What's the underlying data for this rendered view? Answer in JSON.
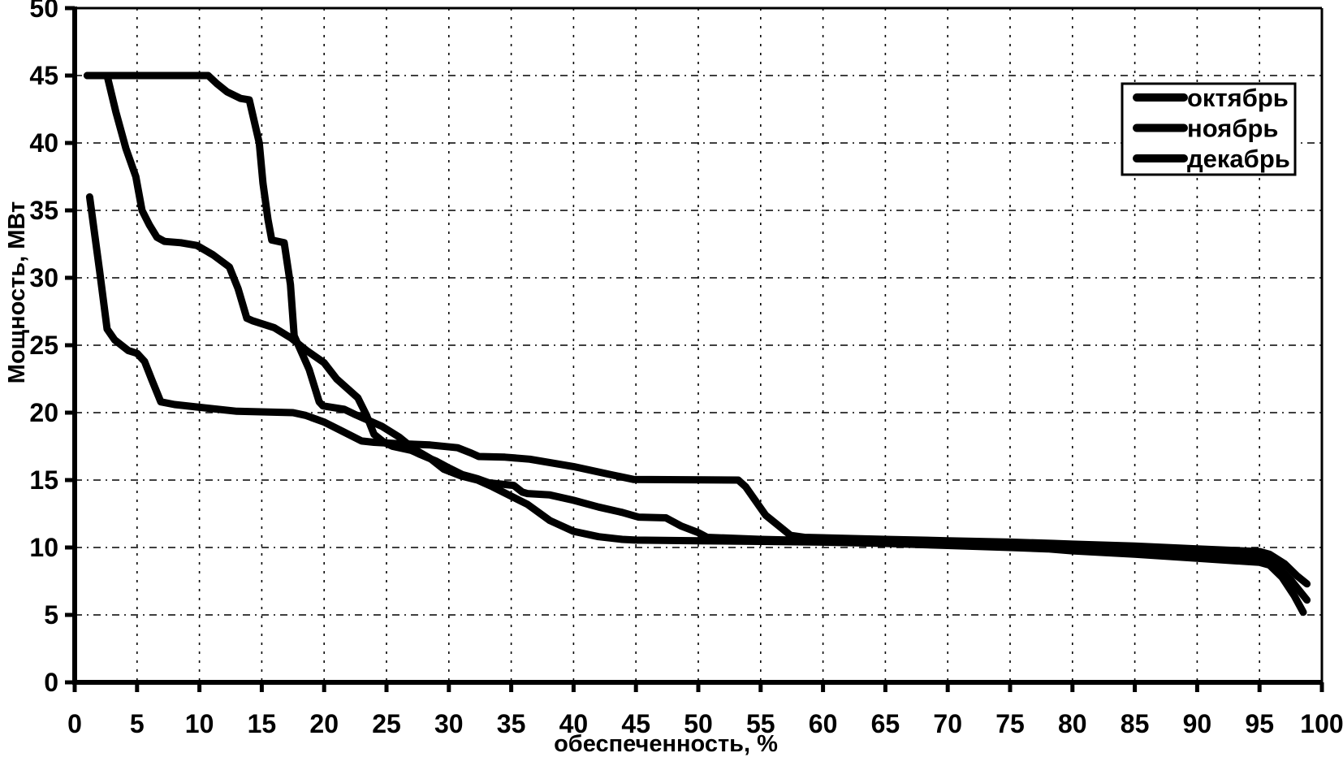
{
  "chart_data": {
    "type": "line",
    "title": "",
    "xlabel": "обеспеченность, %",
    "ylabel": "Мощность, МВт",
    "xlim": [
      0,
      100
    ],
    "ylim": [
      0,
      50
    ],
    "xtick_step": 5,
    "ytick_step": 5,
    "grid": true,
    "line_color": "#000000",
    "background_color": "#ffffff",
    "legend": {
      "position": "top-right",
      "entries": [
        "октябрь",
        "ноябрь",
        "декабрь"
      ]
    },
    "series": [
      {
        "name": "октябрь",
        "points": [
          [
            1.2,
            36
          ],
          [
            2,
            30.5
          ],
          [
            2.6,
            26.2
          ],
          [
            3.2,
            25.4
          ],
          [
            4.3,
            24.6
          ],
          [
            5,
            24.4
          ],
          [
            5.6,
            23.8
          ],
          [
            6.2,
            22.4
          ],
          [
            6.9,
            20.8
          ],
          [
            8,
            20.6
          ],
          [
            10,
            20.4
          ],
          [
            13,
            20.1
          ],
          [
            17.5,
            20.0
          ],
          [
            18.5,
            19.8
          ],
          [
            20,
            19.3
          ],
          [
            21.5,
            18.6
          ],
          [
            23,
            17.9
          ],
          [
            24,
            17.8
          ],
          [
            26,
            17.7
          ],
          [
            28.5,
            17.6
          ],
          [
            30.7,
            17.4
          ],
          [
            31.8,
            17.0
          ],
          [
            32.4,
            16.75
          ],
          [
            34.5,
            16.7
          ],
          [
            36.5,
            16.55
          ],
          [
            40,
            16.0
          ],
          [
            43,
            15.4
          ],
          [
            44.8,
            15.05
          ],
          [
            53.2,
            15.0
          ],
          [
            53.8,
            14.5
          ],
          [
            55.4,
            12.4
          ],
          [
            57.4,
            10.9
          ],
          [
            58.5,
            10.75
          ],
          [
            65,
            10.6
          ],
          [
            70,
            10.5
          ],
          [
            75,
            10.4
          ],
          [
            78.5,
            10.3
          ],
          [
            80,
            10.25
          ],
          [
            85,
            10.1
          ],
          [
            90,
            9.9
          ],
          [
            95,
            9.7
          ],
          [
            95.8,
            9.5
          ],
          [
            97,
            8.8
          ],
          [
            98,
            7.9
          ],
          [
            98.8,
            7.3
          ]
        ]
      },
      {
        "name": "ноябрь",
        "points": [
          [
            1,
            45
          ],
          [
            2.6,
            45
          ],
          [
            3.3,
            42.3
          ],
          [
            4.1,
            39.6
          ],
          [
            4.9,
            37.5
          ],
          [
            5.4,
            35.0
          ],
          [
            6,
            33.9
          ],
          [
            6.6,
            33.0
          ],
          [
            7.2,
            32.7
          ],
          [
            8.5,
            32.6
          ],
          [
            9.8,
            32.4
          ],
          [
            11.1,
            31.7
          ],
          [
            12.4,
            30.8
          ],
          [
            13.1,
            29.2
          ],
          [
            13.8,
            27.0
          ],
          [
            14.3,
            26.8
          ],
          [
            16,
            26.3
          ],
          [
            17.4,
            25.5
          ],
          [
            18.6,
            24.6
          ],
          [
            20,
            23.7
          ],
          [
            21,
            22.5
          ],
          [
            22.7,
            21.1
          ],
          [
            23.4,
            19.8
          ],
          [
            24,
            18.4
          ],
          [
            24.8,
            17.8
          ],
          [
            25.5,
            17.5
          ],
          [
            27,
            17.2
          ],
          [
            27.7,
            16.9
          ],
          [
            29,
            16.4
          ],
          [
            30,
            15.9
          ],
          [
            31.1,
            15.4
          ],
          [
            32.3,
            15.1
          ],
          [
            33.2,
            14.8
          ],
          [
            35.2,
            14.6
          ],
          [
            35.9,
            14.1
          ],
          [
            36.3,
            14.0
          ],
          [
            38.1,
            13.9
          ],
          [
            40,
            13.5
          ],
          [
            42,
            13.0
          ],
          [
            43.9,
            12.6
          ],
          [
            45.2,
            12.25
          ],
          [
            47.4,
            12.2
          ],
          [
            48.6,
            11.6
          ],
          [
            50,
            11.1
          ],
          [
            50.7,
            10.75
          ],
          [
            55,
            10.6
          ],
          [
            60,
            10.5
          ],
          [
            65,
            10.4
          ],
          [
            70,
            10.3
          ],
          [
            75,
            10.15
          ],
          [
            78,
            10.05
          ],
          [
            80,
            9.95
          ],
          [
            85,
            9.8
          ],
          [
            90,
            9.55
          ],
          [
            95,
            9.3
          ],
          [
            96,
            9.0
          ],
          [
            97.5,
            7.6
          ],
          [
            98.8,
            6.1
          ]
        ]
      },
      {
        "name": "декабрь",
        "points": [
          [
            1,
            45
          ],
          [
            10.7,
            45
          ],
          [
            11.4,
            44.4
          ],
          [
            12.2,
            43.8
          ],
          [
            13.3,
            43.3
          ],
          [
            14.0,
            43.2
          ],
          [
            14.8,
            40.0
          ],
          [
            15.1,
            37.0
          ],
          [
            15.5,
            34.3
          ],
          [
            15.8,
            32.8
          ],
          [
            16.8,
            32.6
          ],
          [
            17.3,
            29.5
          ],
          [
            17.6,
            25.7
          ],
          [
            18.8,
            23.2
          ],
          [
            19.6,
            20.8
          ],
          [
            19.9,
            20.5
          ],
          [
            21.6,
            20.25
          ],
          [
            22.4,
            19.9
          ],
          [
            24.6,
            19.0
          ],
          [
            26,
            18.2
          ],
          [
            27.2,
            17.3
          ],
          [
            28.5,
            16.6
          ],
          [
            29.6,
            15.8
          ],
          [
            31,
            15.3
          ],
          [
            32.3,
            15.0
          ],
          [
            33.5,
            14.5
          ],
          [
            36.3,
            13.2
          ],
          [
            38.1,
            12.0
          ],
          [
            40,
            11.2
          ],
          [
            42,
            10.8
          ],
          [
            43.9,
            10.6
          ],
          [
            45,
            10.55
          ],
          [
            50,
            10.5
          ],
          [
            55,
            10.45
          ],
          [
            60,
            10.4
          ],
          [
            65,
            10.3
          ],
          [
            70,
            10.15
          ],
          [
            75,
            10.0
          ],
          [
            78,
            9.9
          ],
          [
            80,
            9.75
          ],
          [
            85,
            9.5
          ],
          [
            90,
            9.2
          ],
          [
            95,
            8.9
          ],
          [
            95.8,
            8.7
          ],
          [
            96.8,
            7.8
          ],
          [
            97.8,
            6.4
          ],
          [
            98.5,
            5.2
          ]
        ]
      }
    ]
  }
}
